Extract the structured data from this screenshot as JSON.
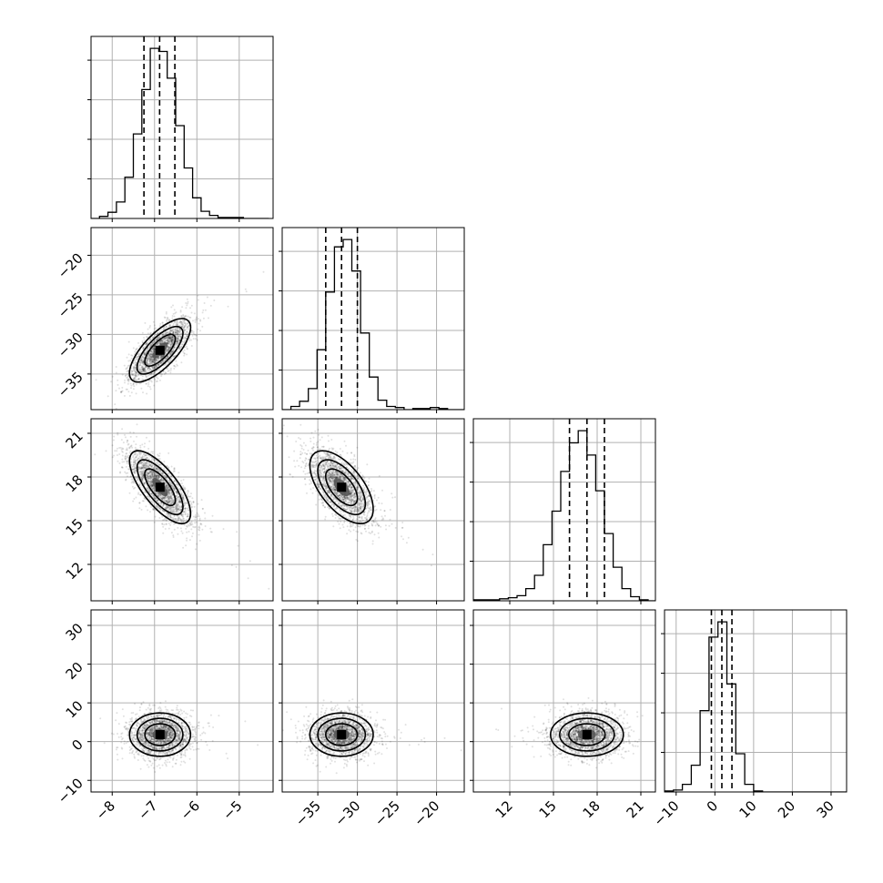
{
  "chart_data": {
    "type": "corner",
    "parameters": [
      {
        "range": [
          -8.5,
          -4.2
        ],
        "ticks": [
          -8,
          -7,
          -6,
          -5
        ],
        "tick_labels": [
          "−8",
          "−7",
          "−6",
          "−5"
        ],
        "mean": -6.87,
        "sigma": 0.36,
        "quantiles": [
          -7.25,
          -6.88,
          -6.52
        ]
      },
      {
        "range": [
          -39.5,
          -16.5
        ],
        "ticks": [
          -35,
          -30,
          -25,
          -20
        ],
        "tick_labels": [
          "−35",
          "−30",
          "−25",
          "−20"
        ],
        "mean": -32.0,
        "sigma": 2.0,
        "quantiles": [
          -34.0,
          -32.0,
          -30.0
        ]
      },
      {
        "range": [
          9.5,
          22.0
        ],
        "ticks": [
          12,
          15,
          18,
          21
        ],
        "tick_labels": [
          "12",
          "15",
          "18",
          "21"
        ],
        "mean": 17.3,
        "sigma": 1.25,
        "quantiles": [
          16.1,
          17.3,
          18.5
        ]
      },
      {
        "range": [
          -13,
          34
        ],
        "ticks": [
          -10,
          0,
          10,
          20,
          30
        ],
        "tick_labels": [
          "−10",
          "0",
          "10",
          "20",
          "30"
        ],
        "mean": 1.8,
        "sigma": 2.8,
        "quantiles": [
          -0.9,
          1.8,
          4.4
        ]
      }
    ],
    "correlations": [
      [
        1,
        0.72,
        -0.72,
        0
      ],
      [
        0.72,
        1,
        -0.6,
        0
      ],
      [
        -0.72,
        -0.6,
        1,
        0
      ],
      [
        0,
        0,
        0,
        1
      ]
    ],
    "histograms": [
      {
        "bins": [
          -8.5,
          -8.3,
          -8.1,
          -7.9,
          -7.7,
          -7.5,
          -7.3,
          -7.1,
          -6.9,
          -6.7,
          -6.5,
          -6.3,
          -6.1,
          -5.9,
          -5.7,
          -5.5,
          -5.3,
          -5.1,
          -4.9,
          -4.7,
          -4.5,
          -4.3
        ],
        "counts": [
          0,
          2,
          6,
          16,
          40,
          82,
          125,
          165,
          162,
          136,
          90,
          49,
          20,
          7,
          3,
          1,
          1,
          1,
          0,
          0,
          0
        ]
      },
      {
        "bins": [
          -39.5,
          -38.4,
          -37.3,
          -36.2,
          -35.1,
          -34.0,
          -32.9,
          -31.8,
          -30.7,
          -29.6,
          -28.5,
          -27.4,
          -26.3,
          -25.2,
          -24.1,
          -23.0,
          -21.9,
          -20.8,
          -19.7,
          -18.6,
          -17.5,
          -16.4
        ],
        "counts": [
          0,
          3,
          8,
          20,
          57,
          112,
          155,
          162,
          132,
          73,
          31,
          9,
          3,
          2,
          0,
          1,
          1,
          2,
          1,
          0,
          0
        ]
      },
      {
        "bins": [
          9.5,
          10.1,
          10.7,
          11.3,
          11.9,
          12.5,
          13.1,
          13.7,
          14.3,
          14.9,
          15.5,
          16.1,
          16.7,
          17.3,
          17.9,
          18.5,
          19.1,
          19.7,
          20.3,
          20.9,
          21.5,
          22.1
        ],
        "counts": [
          1,
          1,
          1,
          2,
          3,
          5,
          12,
          25,
          55,
          88,
          127,
          155,
          167,
          143,
          108,
          66,
          33,
          12,
          4,
          1,
          0
        ]
      },
      {
        "bins": [
          -13,
          -10.7,
          -8.4,
          -6.1,
          -3.8,
          -1.5,
          0.8,
          3.1,
          5.4,
          7.7,
          10.0,
          12.3,
          14.6,
          16.9,
          19.2,
          21.5,
          23.8,
          26.1,
          28.4,
          30.7,
          33.0,
          35.3
        ],
        "counts": [
          1,
          2,
          8,
          28,
          85,
          162,
          178,
          113,
          40,
          8,
          1,
          0,
          0,
          0,
          0,
          0,
          0,
          0,
          0,
          0,
          0
        ]
      }
    ],
    "grid": true,
    "points_per_panel": 2200
  }
}
